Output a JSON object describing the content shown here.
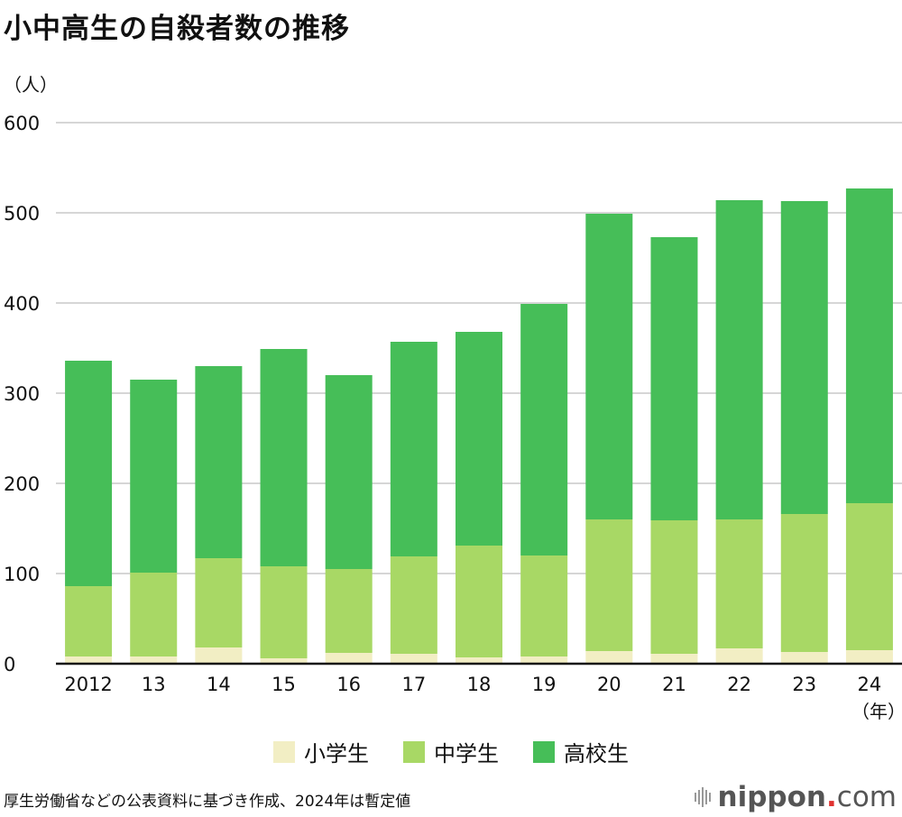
{
  "header": {
    "title": "小中高生の自殺者数の推移",
    "unit": "（人）"
  },
  "chart_data": {
    "type": "bar",
    "stacked": true,
    "title": "小中高生の自殺者数の推移",
    "ylabel": "（人）",
    "xlabel": "（年）",
    "ylim": [
      0,
      600
    ],
    "yticks": [
      0,
      100,
      200,
      300,
      400,
      500,
      600
    ],
    "grid": true,
    "legend_position": "bottom",
    "categories": [
      "2012",
      "13",
      "14",
      "15",
      "16",
      "17",
      "18",
      "19",
      "20",
      "21",
      "22",
      "23",
      "24"
    ],
    "series": [
      {
        "name": "小学生",
        "color": "#f2eec4",
        "values": [
          8,
          8,
          18,
          6,
          12,
          11,
          7,
          8,
          14,
          11,
          17,
          13,
          15
        ]
      },
      {
        "name": "中学生",
        "color": "#a8d865",
        "values": [
          78,
          93,
          99,
          102,
          93,
          108,
          124,
          112,
          146,
          148,
          143,
          153,
          163
        ]
      },
      {
        "name": "高校生",
        "color": "#46be58",
        "values": [
          250,
          214,
          213,
          241,
          215,
          238,
          237,
          279,
          339,
          314,
          354,
          347,
          349
        ]
      }
    ]
  },
  "footer": {
    "source": "厚生労働省などの公表資料に基づき作成、2024年は暫定値",
    "logo_main": "nippon",
    "logo_dot": ".",
    "logo_tail": "com"
  }
}
